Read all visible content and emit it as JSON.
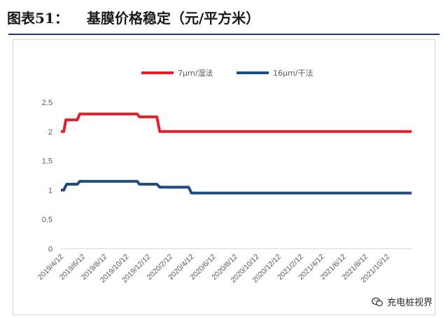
{
  "figure": {
    "label": "图表51：",
    "title": "基膜价格稳定（元/平方米）"
  },
  "watermark": {
    "text": "充电桩视界",
    "icon": "wechat-icon"
  },
  "chart_data": {
    "type": "line",
    "ylim": [
      0,
      2.5
    ],
    "yticks": [
      "0",
      "0.5",
      "1",
      "1.5",
      "2",
      "2.5"
    ],
    "grid": false,
    "legend_position": "top-center",
    "x_ticks": [
      "2019/4/12",
      "2019/6/12",
      "2019/8/12",
      "2019/10/12",
      "2019/12/12",
      "2020/2/12",
      "2020/4/12",
      "2020/6/12",
      "2020/8/12",
      "2020/10/12",
      "2020/12/12",
      "2021/2/12",
      "2021/4/12",
      "2021/6/12",
      "2021/8/12",
      "2021/10/12"
    ],
    "x_range": [
      "2019-04-12",
      "2021-12-20"
    ],
    "series": [
      {
        "name": "7μm/湿法",
        "color": "#e3202b",
        "points": [
          [
            "2019-04-12",
            2.0
          ],
          [
            "2019-04-20",
            2.0
          ],
          [
            "2019-04-26",
            2.2
          ],
          [
            "2019-05-20",
            2.2
          ],
          [
            "2019-05-28",
            2.2
          ],
          [
            "2019-06-04",
            2.3
          ],
          [
            "2019-11-12",
            2.3
          ],
          [
            "2019-11-18",
            2.25
          ],
          [
            "2020-01-06",
            2.25
          ],
          [
            "2020-01-14",
            2.0
          ],
          [
            "2021-12-20",
            2.0
          ]
        ]
      },
      {
        "name": "16μm/干法",
        "color": "#1d4e7f",
        "points": [
          [
            "2019-04-12",
            1.0
          ],
          [
            "2019-04-20",
            1.0
          ],
          [
            "2019-04-28",
            1.1
          ],
          [
            "2019-05-28",
            1.1
          ],
          [
            "2019-06-04",
            1.15
          ],
          [
            "2019-11-12",
            1.15
          ],
          [
            "2019-11-18",
            1.1
          ],
          [
            "2020-01-06",
            1.1
          ],
          [
            "2020-01-14",
            1.05
          ],
          [
            "2020-04-04",
            1.05
          ],
          [
            "2020-04-12",
            0.95
          ],
          [
            "2021-12-20",
            0.95
          ]
        ]
      }
    ]
  }
}
